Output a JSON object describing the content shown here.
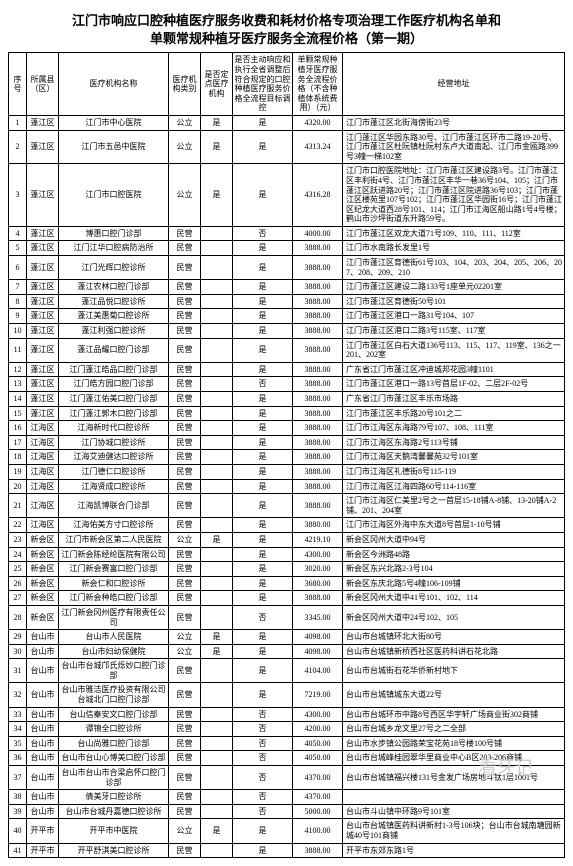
{
  "title_line1": "江门市响应口腔种植医疗服务收费和耗材价格专项治理工作医疗机构名单和",
  "title_line2": "单颗常规种植牙医疗服务全流程价格（第一期）",
  "watermark": "看牙记",
  "headers": {
    "idx": "序号",
    "district": "所属县（区）",
    "name": "医疗机构名称",
    "type": "医疗机构类别",
    "desig": "是否定点医疗机构",
    "active": "是否主动响应和执行全省调整后符合规定的口腔种植医疗服务价格全流程目标调控",
    "price": "单颗常规种植牙医疗服务全流程价格（不含种植体系统费用）（元）",
    "addr": "经营地址"
  },
  "rows": [
    {
      "idx": "1",
      "d": "蓬江区",
      "n": "江门市中心医院",
      "t": "公立",
      "g": "是",
      "a": "是",
      "p": "4320.00",
      "r": "江门市蓬江区北街海傍街23号"
    },
    {
      "idx": "2",
      "d": "蓬江区",
      "n": "江门市五邑中医院",
      "t": "公立",
      "g": "是",
      "a": "是",
      "p": "4313.24",
      "r": "江门蓬江区华园东路30号、江门市蓬江区环市二路19-20号、江门市蓬江区杜阮镇杜阮村东卢大道南起、江门市金瓯路399号3幢一梯102室"
    },
    {
      "idx": "3",
      "d": "蓬江区",
      "n": "江门市口腔医院",
      "t": "公立",
      "g": "是",
      "a": "是",
      "p": "4316.28",
      "r": "江门市口腔医院地址：江门市蓬江区建设路3号。江门市蓬江区丰利街4号、江门市蓬江区丰华一巷36号104、105；江门市蓬江区跃进路20号；江门市蓬江区院进路36号103；江门市蓬江区楼苑里107号102；江门市蓬江区华园街16号；江门市蓬江区纪龙大道西28号101、114；江门市江海区船山路1号4号楼；鹤山市沙坪街道东升路59号。"
    },
    {
      "idx": "4",
      "d": "蓬江区",
      "n": "博惠口腔门诊部",
      "t": "民营",
      "g": "",
      "a": "否",
      "p": "4000.00",
      "r": "江门市蓬江区双龙大道71号109、110、111、112室"
    },
    {
      "idx": "5",
      "d": "蓬江区",
      "n": "江门江华口腔病防治所",
      "t": "民营",
      "g": "",
      "a": "是",
      "p": "3888.00",
      "r": "江门市水南路长发里1号"
    },
    {
      "idx": "6",
      "d": "蓬江区",
      "n": "江门光辉口腔诊所",
      "t": "民营",
      "g": "",
      "a": "是",
      "p": "3888.00",
      "r": "江门市蓬江区育德街61号103、104、203、204、205、206、207、208、209、210"
    },
    {
      "idx": "7",
      "d": "蓬江区",
      "n": "蓬江农林口腔门诊部",
      "t": "民营",
      "g": "",
      "a": "是",
      "p": "3888.00",
      "r": "江门市蓬江区建设二路133号1座单元02201室"
    },
    {
      "idx": "8",
      "d": "蓬江区",
      "n": "蓬江品悦口腔诊所",
      "t": "民营",
      "g": "",
      "a": "是",
      "p": "3888.00",
      "r": "江门市蓬江区育德街50号101"
    },
    {
      "idx": "9",
      "d": "蓬江区",
      "n": "蓬江美惠菊口腔诊所",
      "t": "民营",
      "g": "",
      "a": "是",
      "p": "3888.00",
      "r": "江门市蓬江区港口一路31号104、107"
    },
    {
      "idx": "10",
      "d": "蓬江区",
      "n": "蓬江利强口腔诊所",
      "t": "民营",
      "g": "",
      "a": "是",
      "p": "3888.00",
      "r": "江门市蓬江区港口二路3号115室、117室"
    },
    {
      "idx": "11",
      "d": "蓬江区",
      "n": "蓬江品耀口腔门诊部",
      "t": "民营",
      "g": "",
      "a": "是",
      "p": "3888.00",
      "r": "江门市蓬江区白石大道136号113、115、117、119室、136之一201、202室"
    },
    {
      "idx": "12",
      "d": "蓬江区",
      "n": "江门蓬江皓品口腔门诊部",
      "t": "民营",
      "g": "",
      "a": "是",
      "p": "3888.00",
      "r": "广东省江门市蓬江区冲迪城邦花园3幢1101"
    },
    {
      "idx": "13",
      "d": "蓬江区",
      "n": "江门皓方园口腔门诊部",
      "t": "民营",
      "g": "",
      "a": "否",
      "p": "3888.00",
      "r": "江门市蓬江区港口一路13号首层1F-02、二层2F-02号"
    },
    {
      "idx": "14",
      "d": "蓬江区",
      "n": "江门蓬江佑美口腔门诊部",
      "t": "民营",
      "g": "",
      "a": "是",
      "p": "3888.00",
      "r": "广东省江门市蓬江区丰乐市场路"
    },
    {
      "idx": "15",
      "d": "蓬江区",
      "n": "江门蓬江郭木口腔门诊部",
      "t": "民营",
      "g": "",
      "a": "是",
      "p": "3888.00",
      "r": "江门市蓬江区丰乐路20号101之二"
    },
    {
      "idx": "16",
      "d": "江海区",
      "n": "江海新时代口腔诊所",
      "t": "民营",
      "g": "",
      "a": "是",
      "p": "3888.00",
      "r": "江门市江海区东海路79号107、108、111室"
    },
    {
      "idx": "17",
      "d": "江海区",
      "n": "江门协城口腔诊所",
      "t": "民营",
      "g": "",
      "a": "是",
      "p": "3888.00",
      "r": "江门市江海区东海路2号113号铺"
    },
    {
      "idx": "18",
      "d": "江海区",
      "n": "江海艾迪健达口腔诊所",
      "t": "民营",
      "g": "",
      "a": "是",
      "p": "3888.00",
      "r": "江门市江海区天鹅湾馨馨苑32号101室"
    },
    {
      "idx": "19",
      "d": "江海区",
      "n": "江门德仁口腔诊所",
      "t": "民营",
      "g": "",
      "a": "是",
      "p": "3888.00",
      "r": "江门市江海区礼德街8号115-119"
    },
    {
      "idx": "20",
      "d": "江海区",
      "n": "江海贤成口腔诊所",
      "t": "民营",
      "g": "",
      "a": "是",
      "p": "3888.00",
      "r": "江门市江海区江海四路60号114-116室"
    },
    {
      "idx": "21",
      "d": "江海区",
      "n": "江海凯博联合门诊部",
      "t": "民营",
      "g": "",
      "a": "是",
      "p": "3888.00",
      "r": "江门市江海区仁美里2号之一首层15-18铺A-8铺、13-20铺A-2铺、201、204室"
    },
    {
      "idx": "22",
      "d": "江海区",
      "n": "江海佑美方寸口腔诊所",
      "t": "民营",
      "g": "",
      "a": "是",
      "p": "3880.00",
      "r": "江门市江海区外海中东大道8号首层1-10号铺"
    },
    {
      "idx": "23",
      "d": "新会区",
      "n": "江门市新会区第二人民医院",
      "t": "公立",
      "g": "是",
      "a": "是",
      "p": "4219.10",
      "r": "新会区冈州大道中94号"
    },
    {
      "idx": "24",
      "d": "新会区",
      "n": "江门新会陈经纶医院有限公司",
      "t": "民营",
      "g": "",
      "a": "是",
      "p": "4300.00",
      "r": "新会区今洲路48路"
    },
    {
      "idx": "25",
      "d": "新会区",
      "n": "江门新会赛富口腔门诊部",
      "t": "民营",
      "g": "",
      "a": "是",
      "p": "3020.00",
      "r": "新会区东兴北路2-3号104"
    },
    {
      "idx": "26",
      "d": "新会区",
      "n": "新会仁和口腔诊所",
      "t": "民营",
      "g": "",
      "a": "是",
      "p": "3680.00",
      "r": "新会区东庆北路5号4幢106-109铺"
    },
    {
      "idx": "27",
      "d": "新会区",
      "n": "江门新会种皓口腔门诊部",
      "t": "民营",
      "g": "",
      "a": "是",
      "p": "3888.00",
      "r": "新会区冈州大道中41号101、102、114"
    },
    {
      "idx": "28",
      "d": "新会区",
      "n": "江门新会冈州医疗有限责任公司",
      "t": "民营",
      "g": "",
      "a": "否",
      "p": "3345.00",
      "r": "新会区冈州大道中24号102、105"
    },
    {
      "idx": "29",
      "d": "台山市",
      "n": "台山市人民医院",
      "t": "公立",
      "g": "是",
      "a": "是",
      "p": "4098.00",
      "r": "台山市台城镇环北大街80号"
    },
    {
      "idx": "30",
      "d": "台山市",
      "n": "台山市妇幼保健院",
      "t": "公立",
      "g": "是",
      "a": "是",
      "p": "4098.00",
      "r": "台山市台城镇新桥西社区医药科讲石花北路"
    },
    {
      "idx": "31",
      "d": "台山市",
      "n": "台山市台城邝氏烁妙口腔门诊部",
      "t": "民营",
      "g": "",
      "a": "是",
      "p": "4104.00",
      "r": "台山市台城街石花华侨新村地下"
    },
    {
      "idx": "32",
      "d": "台山市",
      "n": "台山市雅洁医疗投资有限公司台城北门口腔门诊部",
      "t": "民营",
      "g": "",
      "a": "是",
      "p": "7219.00",
      "r": "台山市台城镇城东大道22号"
    },
    {
      "idx": "33",
      "d": "台山市",
      "n": "台山信秦安文口腔门诊部",
      "t": "民营",
      "g": "",
      "a": "否",
      "p": "4300.00",
      "r": "台山市台城环市中路8号西区华宇轩广场商业街302商铺"
    },
    {
      "idx": "34",
      "d": "台山市",
      "n": "谭锦全口腔诊所",
      "t": "民营",
      "g": "",
      "a": "否",
      "p": "4200.00",
      "r": "台山市台城乡龙文里27号之二全部"
    },
    {
      "idx": "35",
      "d": "台山市",
      "n": "台山尚雅口腔门诊部",
      "t": "民营",
      "g": "",
      "a": "否",
      "p": "4050.00",
      "r": "台山市水步镇公园路荣宝花苑18号楼100号铺"
    },
    {
      "idx": "36",
      "d": "台山市",
      "n": "台山市台山心博美口腔门诊部",
      "t": "民营",
      "g": "",
      "a": "否",
      "p": "4050.00",
      "r": "台山市台城峰桂园翠华里商业中心B区203-206商铺"
    },
    {
      "idx": "37",
      "d": "台山市",
      "n": "台山市台山市合梁启怀口腔门诊部",
      "t": "民营",
      "g": "",
      "a": "否",
      "p": "4370.00",
      "r": "台山市台城镇福兴楼131号金发广场房地斗钛1层1001号"
    },
    {
      "idx": "38",
      "d": "台山市",
      "n": "倩美牙口腔诊所",
      "t": "民营",
      "g": "",
      "a": "否",
      "p": "4370.00",
      "r": ""
    },
    {
      "idx": "39",
      "d": "台山市",
      "n": "台山市台城丹嘉德口腔诊所",
      "t": "民营",
      "g": "",
      "a": "否",
      "p": "5000.00",
      "r": "台山市斗山镇中环路9号101室"
    },
    {
      "idx": "40",
      "d": "开平市",
      "n": "开平市中医院",
      "t": "公立",
      "g": "是",
      "a": "是",
      "p": "4100.00",
      "r": "台山市台城镇医药科讲新村1-3号106块；台山市台城南塘园新城40号101商铺"
    },
    {
      "idx": "41",
      "d": "开平市",
      "n": "开平舒淇美口腔诊所",
      "t": "民营",
      "g": "",
      "a": "是",
      "p": "3888.00",
      "r": "开平市东郊东路1号"
    }
  ]
}
